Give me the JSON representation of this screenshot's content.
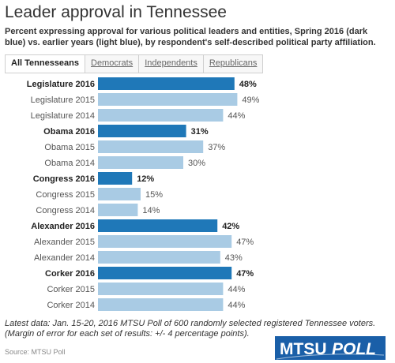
{
  "header": {
    "title": "Leader approval in Tennessee",
    "subtitle": "Percent expressing approval for various political leaders and entities, Spring 2016 (dark blue) vs. earlier years (light blue), by respondent's self-described political party affiliation."
  },
  "tabs": [
    {
      "label": "All Tennesseans",
      "active": true
    },
    {
      "label": "Democrats",
      "active": false
    },
    {
      "label": "Independents",
      "active": false
    },
    {
      "label": "Republicans",
      "active": false
    }
  ],
  "colors": {
    "current": "#1f78b8",
    "earlier": "#a9cbe4"
  },
  "chart_data": {
    "type": "bar",
    "orientation": "horizontal",
    "categories": [
      "Legislature 2016",
      "Legislature 2015",
      "Legislature 2014",
      "Obama 2016",
      "Obama 2015",
      "Obama 2014",
      "Congress 2016",
      "Congress 2015",
      "Congress 2014",
      "Alexander 2016",
      "Alexander 2015",
      "Alexander 2014",
      "Corker 2016",
      "Corker 2015",
      "Corker 2014"
    ],
    "values": [
      48,
      49,
      44,
      31,
      37,
      30,
      12,
      15,
      14,
      42,
      47,
      43,
      47,
      44,
      44
    ],
    "value_labels": [
      "48%",
      "49%",
      "44%",
      "31%",
      "37%",
      "30%",
      "12%",
      "15%",
      "14%",
      "42%",
      "47%",
      "43%",
      "47%",
      "44%",
      "44%"
    ],
    "current": [
      true,
      false,
      false,
      true,
      false,
      false,
      true,
      false,
      false,
      true,
      false,
      false,
      true,
      false,
      false
    ],
    "xlim": [
      0,
      50
    ],
    "grid": false
  },
  "footnote": "Latest data: Jan. 15-20, 2016 MTSU Poll of 600 randomly selected registered Tennessee voters. (Margin of error for each set of results: +/- 4 percentage points).",
  "source": "Source: MTSU Poll",
  "logo": {
    "part1": "MTSU",
    "part2": "POLL"
  }
}
